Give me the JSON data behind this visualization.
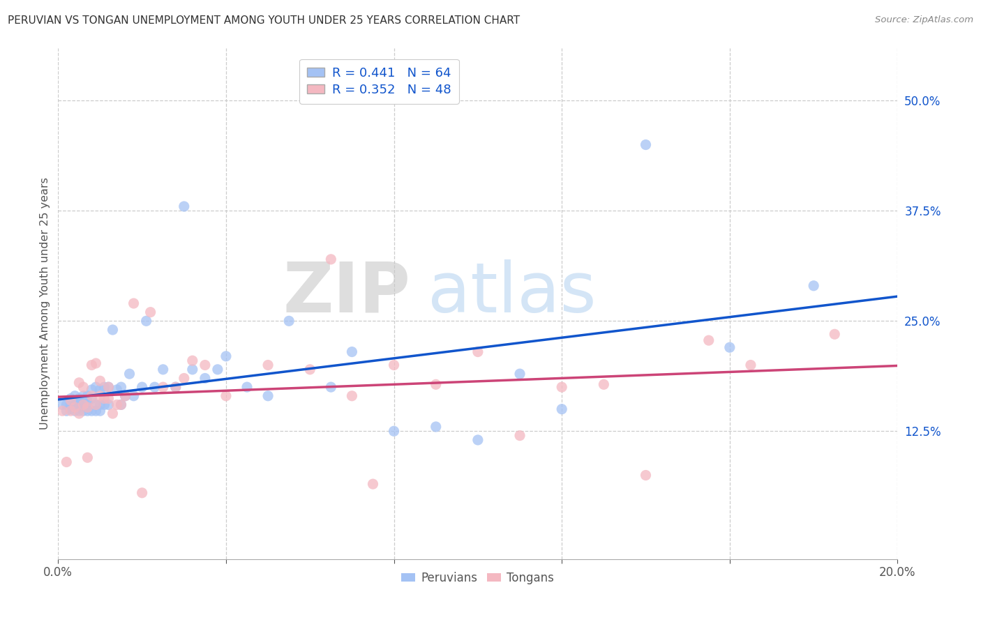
{
  "title": "PERUVIAN VS TONGAN UNEMPLOYMENT AMONG YOUTH UNDER 25 YEARS CORRELATION CHART",
  "source": "Source: ZipAtlas.com",
  "ylabel": "Unemployment Among Youth under 25 years",
  "xlim": [
    0.0,
    0.2
  ],
  "ylim": [
    -0.02,
    0.56
  ],
  "xticks": [
    0.0,
    0.04,
    0.08,
    0.12,
    0.16,
    0.2
  ],
  "xtick_labels": [
    "0.0%",
    "",
    "",
    "",
    "",
    "20.0%"
  ],
  "yticks_right": [
    0.125,
    0.25,
    0.375,
    0.5
  ],
  "ytick_labels_right": [
    "12.5%",
    "25.0%",
    "37.5%",
    "50.0%"
  ],
  "blue_R": 0.441,
  "blue_N": 64,
  "pink_R": 0.352,
  "pink_N": 48,
  "blue_color": "#a4c2f4",
  "pink_color": "#f4b8c1",
  "blue_line_color": "#1155cc",
  "pink_line_color": "#cc4477",
  "watermark_zip": "ZIP",
  "watermark_atlas": "atlas",
  "legend_labels": [
    "Peruvians",
    "Tongans"
  ],
  "blue_x": [
    0.001,
    0.002,
    0.002,
    0.003,
    0.003,
    0.003,
    0.004,
    0.004,
    0.004,
    0.005,
    0.005,
    0.005,
    0.005,
    0.006,
    0.006,
    0.006,
    0.006,
    0.007,
    0.007,
    0.007,
    0.007,
    0.008,
    0.008,
    0.008,
    0.009,
    0.009,
    0.009,
    0.01,
    0.01,
    0.01,
    0.011,
    0.011,
    0.012,
    0.012,
    0.013,
    0.014,
    0.015,
    0.015,
    0.016,
    0.017,
    0.018,
    0.02,
    0.021,
    0.023,
    0.025,
    0.028,
    0.03,
    0.032,
    0.035,
    0.038,
    0.04,
    0.045,
    0.05,
    0.055,
    0.065,
    0.07,
    0.08,
    0.09,
    0.1,
    0.11,
    0.12,
    0.14,
    0.16,
    0.18
  ],
  "blue_y": [
    0.155,
    0.148,
    0.155,
    0.15,
    0.155,
    0.162,
    0.148,
    0.155,
    0.165,
    0.148,
    0.152,
    0.158,
    0.162,
    0.148,
    0.152,
    0.158,
    0.165,
    0.148,
    0.152,
    0.158,
    0.165,
    0.148,
    0.162,
    0.172,
    0.148,
    0.155,
    0.175,
    0.148,
    0.155,
    0.172,
    0.155,
    0.175,
    0.155,
    0.175,
    0.24,
    0.172,
    0.155,
    0.175,
    0.165,
    0.19,
    0.165,
    0.175,
    0.25,
    0.175,
    0.195,
    0.175,
    0.38,
    0.195,
    0.185,
    0.195,
    0.21,
    0.175,
    0.165,
    0.25,
    0.175,
    0.215,
    0.125,
    0.13,
    0.115,
    0.19,
    0.15,
    0.45,
    0.22,
    0.29
  ],
  "pink_x": [
    0.001,
    0.002,
    0.003,
    0.003,
    0.004,
    0.005,
    0.005,
    0.006,
    0.006,
    0.007,
    0.007,
    0.008,
    0.008,
    0.009,
    0.009,
    0.01,
    0.01,
    0.011,
    0.012,
    0.012,
    0.013,
    0.014,
    0.015,
    0.016,
    0.018,
    0.02,
    0.022,
    0.025,
    0.028,
    0.03,
    0.032,
    0.035,
    0.04,
    0.05,
    0.06,
    0.065,
    0.07,
    0.075,
    0.08,
    0.09,
    0.1,
    0.11,
    0.12,
    0.13,
    0.14,
    0.155,
    0.165,
    0.185
  ],
  "pink_y": [
    0.148,
    0.09,
    0.148,
    0.16,
    0.152,
    0.18,
    0.145,
    0.155,
    0.175,
    0.152,
    0.095,
    0.165,
    0.2,
    0.202,
    0.155,
    0.165,
    0.182,
    0.162,
    0.162,
    0.175,
    0.145,
    0.155,
    0.155,
    0.165,
    0.27,
    0.055,
    0.26,
    0.175,
    0.175,
    0.185,
    0.205,
    0.2,
    0.165,
    0.2,
    0.195,
    0.32,
    0.165,
    0.065,
    0.2,
    0.178,
    0.215,
    0.12,
    0.175,
    0.178,
    0.075,
    0.228,
    0.2,
    0.235
  ]
}
